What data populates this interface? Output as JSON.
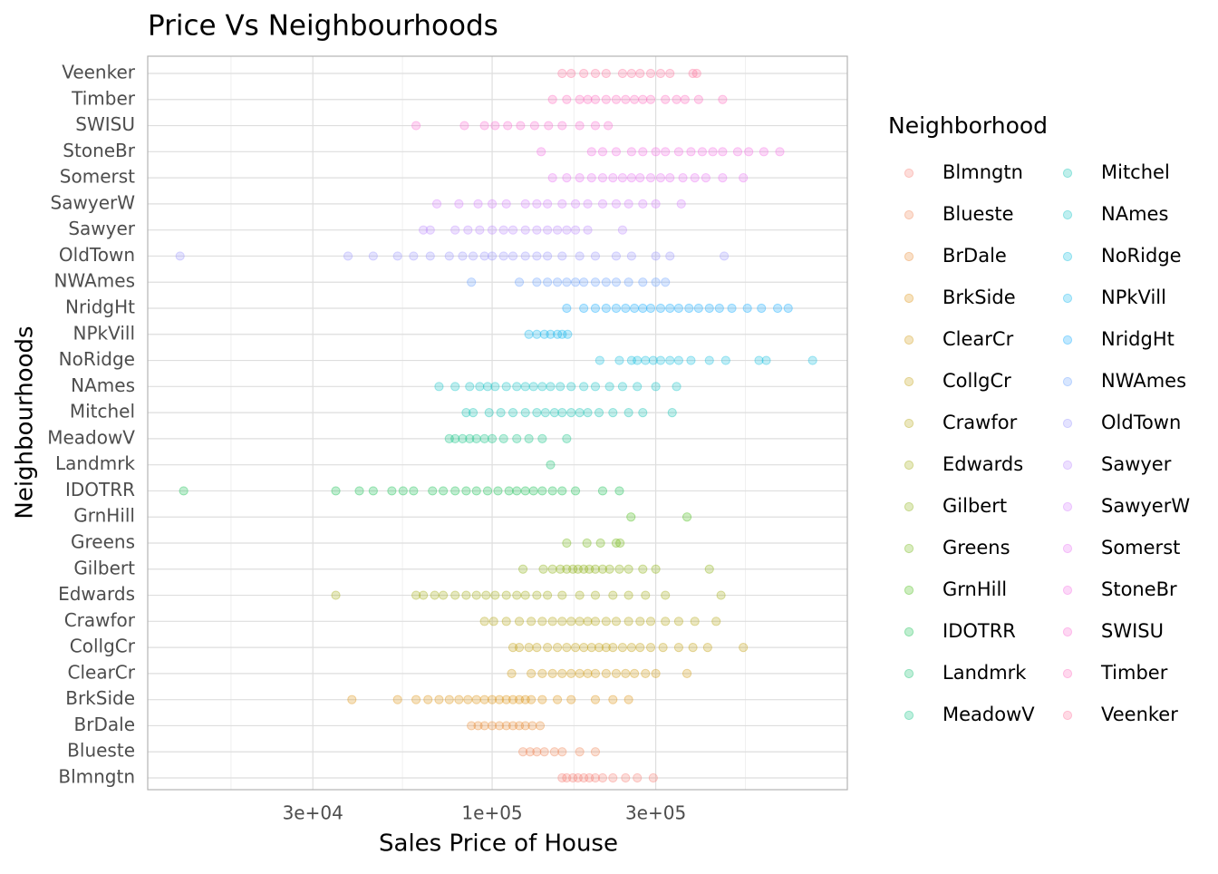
{
  "chart_data": {
    "type": "strip",
    "title": "Price Vs Neighbourhoods",
    "x_label": "Sales Price of House",
    "y_label": "Neighbourhoods",
    "legend_title": "Neighborhood",
    "log_x": true,
    "grid": true,
    "legend_position": "right",
    "point_alpha": 0.25,
    "xlim": [
      9900,
      1086000
    ],
    "xticks": [
      {
        "value": 30000,
        "label": "3e+04"
      },
      {
        "value": 100000,
        "label": "1e+05"
      },
      {
        "value": 300000,
        "label": "3e+05"
      }
    ],
    "x_minor_grid": [
      17320,
      54772,
      173205,
      547723
    ],
    "categories": [
      "Blmngtn",
      "Blueste",
      "BrDale",
      "BrkSide",
      "ClearCr",
      "CollgCr",
      "Crawfor",
      "Edwards",
      "Gilbert",
      "Greens",
      "GrnHill",
      "IDOTRR",
      "Landmrk",
      "MeadowV",
      "Mitchel",
      "NAmes",
      "NoRidge",
      "NPkVill",
      "NridgHt",
      "NWAmes",
      "OldTown",
      "Sawyer",
      "SawyerW",
      "Somerst",
      "StoneBr",
      "SWISU",
      "Timber",
      "Veenker"
    ],
    "series": [
      {
        "name": "Blmngtn",
        "color": "#F8766D",
        "values": [
          160000,
          165000,
          172000,
          178000,
          185000,
          192000,
          200000,
          210000,
          225000,
          245000,
          265000,
          295000
        ]
      },
      {
        "name": "Blueste",
        "color": "#F17E4C",
        "values": [
          123000,
          129000,
          135000,
          142000,
          152000,
          160000,
          180000,
          200000
        ]
      },
      {
        "name": "BrDale",
        "color": "#E88526",
        "values": [
          87000,
          91000,
          95000,
          100000,
          105000,
          110000,
          115000,
          120000,
          125000,
          131000,
          138000
        ]
      },
      {
        "name": "BrkSide",
        "color": "#DC8D00",
        "values": [
          39000,
          53000,
          60000,
          65000,
          70000,
          75000,
          80000,
          85000,
          90000,
          95000,
          100000,
          105000,
          110000,
          115000,
          120000,
          125000,
          130000,
          140000,
          155000,
          170000,
          200000,
          225000,
          250000
        ]
      },
      {
        "name": "ClearCr",
        "color": "#CF9400",
        "values": [
          114000,
          130000,
          140000,
          150000,
          160000,
          170000,
          180000,
          190000,
          200000,
          215000,
          230000,
          245000,
          260000,
          280000,
          300000,
          370000
        ]
      },
      {
        "name": "CollgCr",
        "color": "#C09B00",
        "values": [
          115000,
          120000,
          128000,
          135000,
          145000,
          155000,
          165000,
          175000,
          185000,
          195000,
          205000,
          215000,
          225000,
          240000,
          255000,
          270000,
          290000,
          315000,
          350000,
          385000,
          425000,
          540000
        ]
      },
      {
        "name": "Crawfor",
        "color": "#AFA100",
        "values": [
          95000,
          101000,
          110000,
          120000,
          130000,
          140000,
          150000,
          160000,
          170000,
          180000,
          190000,
          200000,
          215000,
          230000,
          250000,
          270000,
          290000,
          320000,
          350000,
          390000,
          450000
        ]
      },
      {
        "name": "Edwards",
        "color": "#9CA700",
        "values": [
          35000,
          60000,
          63000,
          68000,
          72000,
          78000,
          84000,
          90000,
          96000,
          102000,
          110000,
          118000,
          125000,
          135000,
          145000,
          160000,
          180000,
          200000,
          225000,
          250000,
          280000,
          320000,
          465000
        ]
      },
      {
        "name": "Gilbert",
        "color": "#85AD00",
        "values": [
          123000,
          141000,
          150000,
          158000,
          165000,
          172000,
          178000,
          185000,
          192000,
          200000,
          210000,
          220000,
          235000,
          250000,
          275000,
          300000,
          430000
        ]
      },
      {
        "name": "Greens",
        "color": "#68B200",
        "values": [
          165000,
          189000,
          207000,
          230000,
          236000
        ]
      },
      {
        "name": "GrnHill",
        "color": "#39B600",
        "values": [
          254000,
          370000
        ]
      },
      {
        "name": "IDOTRR",
        "color": "#00BA42",
        "values": [
          12600,
          35000,
          41000,
          45000,
          51000,
          55000,
          59000,
          67000,
          72000,
          78000,
          84000,
          90000,
          97000,
          104000,
          112000,
          118000,
          125000,
          132000,
          140000,
          150000,
          160000,
          175000,
          210000,
          235000
        ]
      },
      {
        "name": "Landmrk",
        "color": "#00BD63",
        "values": [
          148000
        ]
      },
      {
        "name": "MeadowV",
        "color": "#00BF7D",
        "values": [
          75000,
          78000,
          82000,
          86000,
          90000,
          95000,
          100000,
          108000,
          118000,
          128000,
          140000,
          165000
        ]
      },
      {
        "name": "Mitchel",
        "color": "#00C0B0",
        "values": [
          84000,
          88000,
          98000,
          106000,
          115000,
          125000,
          135000,
          143000,
          152000,
          160000,
          170000,
          180000,
          190000,
          205000,
          225000,
          250000,
          275000,
          335000
        ]
      },
      {
        "name": "NAmes",
        "color": "#00BFC4",
        "values": [
          70000,
          78000,
          86000,
          92000,
          97000,
          102000,
          110000,
          118000,
          125000,
          132000,
          140000,
          148000,
          158000,
          170000,
          185000,
          200000,
          220000,
          240000,
          265000,
          300000,
          345000
        ]
      },
      {
        "name": "NoRidge",
        "color": "#00BADE",
        "values": [
          206000,
          235000,
          255000,
          265000,
          280000,
          295000,
          310000,
          330000,
          350000,
          380000,
          430000,
          480000,
          600000,
          630000,
          860000
        ]
      },
      {
        "name": "NPkVill",
        "color": "#00B2EE",
        "values": [
          128000,
          135000,
          142000,
          148000,
          155000,
          160000,
          166000
        ]
      },
      {
        "name": "NridgHt",
        "color": "#00A5FF",
        "values": [
          165000,
          185000,
          200000,
          215000,
          230000,
          245000,
          260000,
          275000,
          290000,
          310000,
          330000,
          350000,
          375000,
          400000,
          430000,
          460000,
          500000,
          555000,
          610000,
          680000,
          730000
        ]
      },
      {
        "name": "NWAmes",
        "color": "#619CFF",
        "values": [
          87000,
          120000,
          135000,
          145000,
          155000,
          165000,
          175000,
          185000,
          200000,
          215000,
          230000,
          250000,
          275000,
          300000,
          320000
        ]
      },
      {
        "name": "OldTown",
        "color": "#9590FF",
        "values": [
          12300,
          38000,
          45000,
          53000,
          59000,
          66000,
          75000,
          82000,
          88000,
          95000,
          100000,
          108000,
          115000,
          125000,
          135000,
          145000,
          160000,
          180000,
          200000,
          230000,
          255000,
          300000,
          330000,
          475000
        ]
      },
      {
        "name": "Sawyer",
        "color": "#B983FF",
        "values": [
          63000,
          66000,
          78000,
          85000,
          92000,
          100000,
          108000,
          115000,
          125000,
          135000,
          145000,
          155000,
          165000,
          175000,
          190000,
          240000
        ]
      },
      {
        "name": "SawyerW",
        "color": "#D376FF",
        "values": [
          69000,
          80000,
          91000,
          100000,
          110000,
          125000,
          135000,
          145000,
          160000,
          175000,
          190000,
          210000,
          230000,
          250000,
          275000,
          300000,
          356000
        ]
      },
      {
        "name": "Somerst",
        "color": "#E76BF3",
        "values": [
          150000,
          165000,
          180000,
          195000,
          210000,
          225000,
          240000,
          255000,
          270000,
          290000,
          310000,
          330000,
          360000,
          390000,
          420000,
          470000,
          540000
        ]
      },
      {
        "name": "StoneBr",
        "color": "#F564E3",
        "values": [
          139000,
          195000,
          210000,
          230000,
          255000,
          275000,
          300000,
          320000,
          350000,
          380000,
          410000,
          440000,
          470000,
          520000,
          560000,
          620000,
          690000
        ]
      },
      {
        "name": "SWISU",
        "color": "#FD61D1",
        "values": [
          60000,
          83000,
          95000,
          102000,
          111000,
          121000,
          133000,
          146000,
          160000,
          180000,
          200000,
          218000
        ]
      },
      {
        "name": "Timber",
        "color": "#FF62BC",
        "values": [
          150000,
          165000,
          180000,
          190000,
          200000,
          215000,
          230000,
          245000,
          260000,
          275000,
          290000,
          320000,
          345000,
          365000,
          400000,
          470000
        ]
      },
      {
        "name": "Veenker",
        "color": "#FF6A98",
        "values": [
          160000,
          170000,
          185000,
          200000,
          215000,
          240000,
          255000,
          270000,
          290000,
          310000,
          330000,
          385000,
          395000
        ]
      }
    ]
  }
}
